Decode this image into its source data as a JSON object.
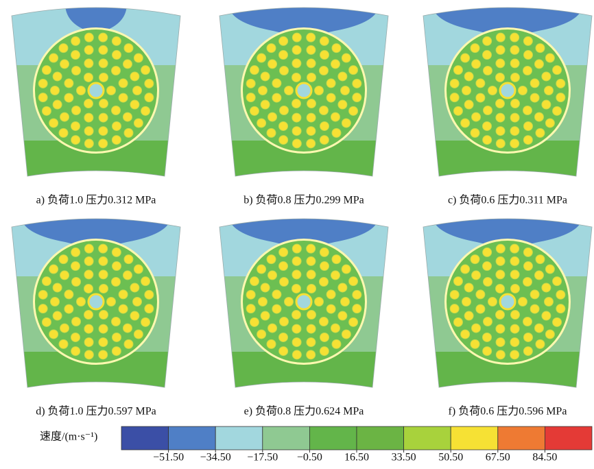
{
  "panels": [
    {
      "caption": "a) 负荷1.0 压力0.312 MPa"
    },
    {
      "caption": "b) 负荷0.8 压力0.299 MPa"
    },
    {
      "caption": "c) 负荷0.6 压力0.311 MPa"
    },
    {
      "caption": "d) 负荷1.0 压力0.597 MPa"
    },
    {
      "caption": "e) 负荷0.8 压力0.624 MPa"
    },
    {
      "caption": "f) 负荷0.6 压力0.596 MPa"
    }
  ],
  "colorbar": {
    "label": "速度/(m·s⁻¹)",
    "colors": [
      "#3b4fa6",
      "#4f7fc6",
      "#a2d7de",
      "#8fc992",
      "#63b54a",
      "#6bb444",
      "#a8d23c",
      "#f6e134",
      "#ee7a33",
      "#e43a36"
    ],
    "ticks": [
      {
        "value": -51.5,
        "label": "−51.50"
      },
      {
        "value": -34.5,
        "label": "−34.50"
      },
      {
        "value": -17.5,
        "label": "−17.50"
      },
      {
        "value": -0.5,
        "label": "−0.50"
      },
      {
        "value": 16.5,
        "label": "16.50"
      },
      {
        "value": 33.5,
        "label": "33.50"
      },
      {
        "value": 50.5,
        "label": "50.50"
      },
      {
        "value": 67.5,
        "label": "67.50"
      },
      {
        "value": 84.5,
        "label": "84.50"
      }
    ]
  }
}
